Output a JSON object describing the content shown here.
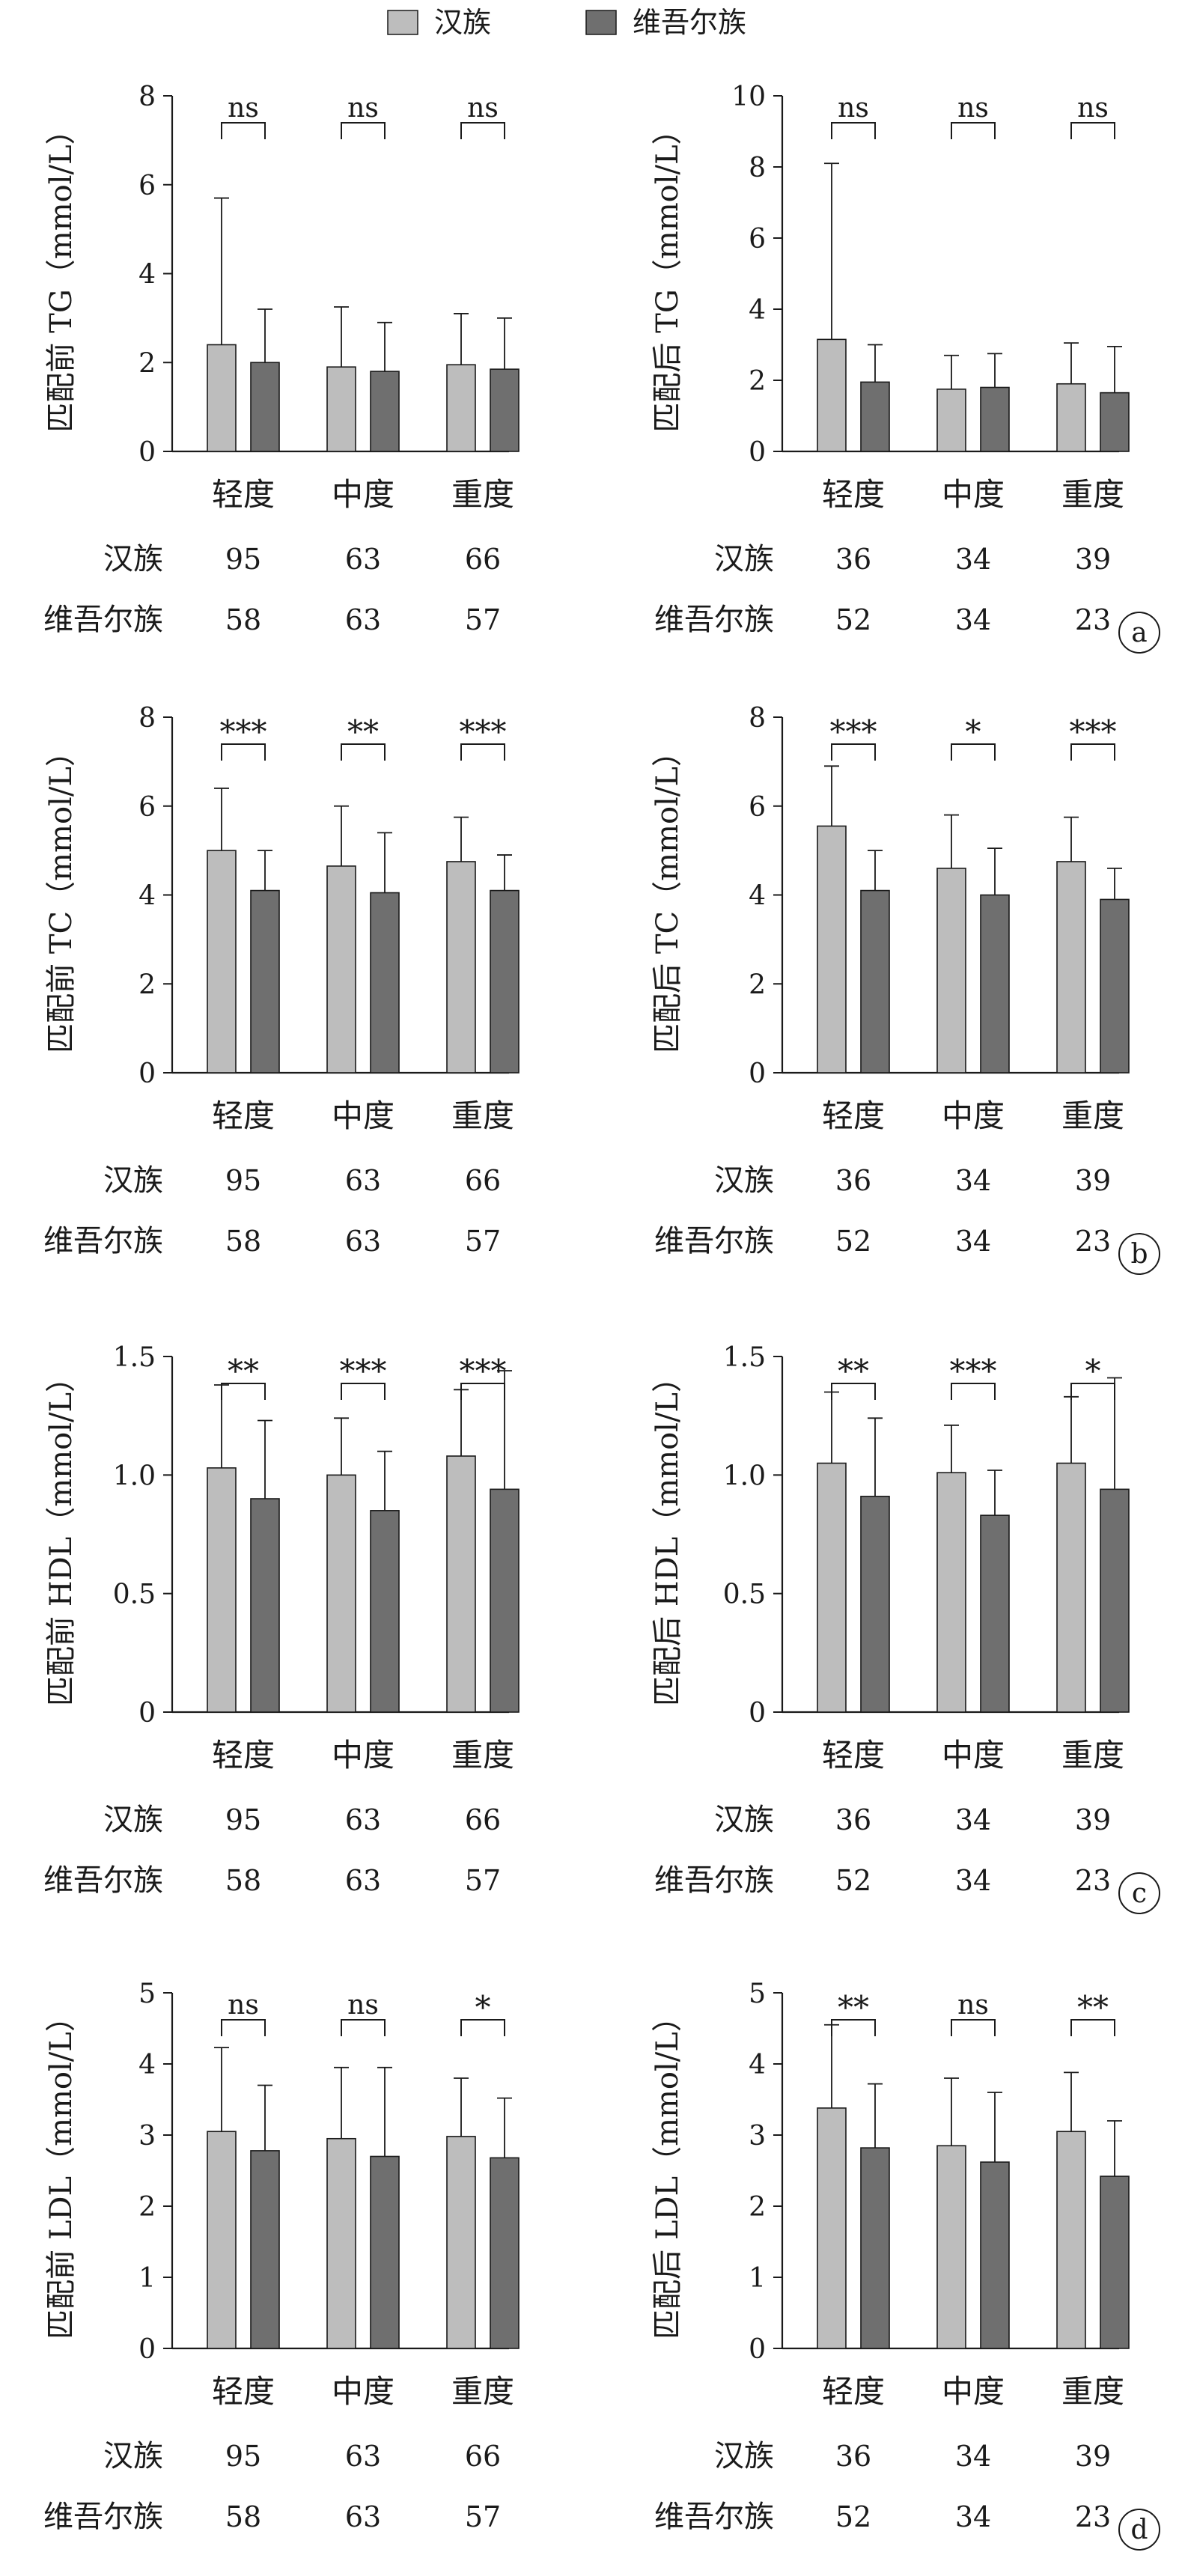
{
  "legend": {
    "items": [
      {
        "label": "汉族",
        "color": "#bdbdbd"
      },
      {
        "label": "维吾尔族",
        "color": "#6f6f6f"
      }
    ]
  },
  "colors": {
    "han": "#bdbdbd",
    "uyghur": "#6f6f6f",
    "axis": "#1a1a1a"
  },
  "count_row_labels": [
    "汉族",
    "维吾尔族"
  ],
  "panels": [
    {
      "letter": "a",
      "charts": [
        {
          "ylabel": "匹配前 TG（mmol/L）",
          "ticks": [
            "0",
            "2",
            "4",
            "6",
            "8"
          ],
          "counts_han": [
            "95",
            "63",
            "66"
          ],
          "counts_uyghur": [
            "58",
            "63",
            "57"
          ]
        },
        {
          "ylabel": "匹配后 TG（mmol/L）",
          "ticks": [
            "0",
            "2",
            "4",
            "6",
            "8",
            "10"
          ],
          "counts_han": [
            "36",
            "34",
            "39"
          ],
          "counts_uyghur": [
            "52",
            "34",
            "23"
          ]
        }
      ]
    },
    {
      "letter": "b",
      "charts": [
        {
          "ylabel": "匹配前 TC（mmol/L）",
          "ticks": [
            "0",
            "2",
            "4",
            "6",
            "8"
          ],
          "counts_han": [
            "95",
            "63",
            "66"
          ],
          "counts_uyghur": [
            "58",
            "63",
            "57"
          ]
        },
        {
          "ylabel": "匹配后 TC（mmol/L）",
          "ticks": [
            "0",
            "2",
            "4",
            "6",
            "8"
          ],
          "counts_han": [
            "36",
            "34",
            "39"
          ],
          "counts_uyghur": [
            "52",
            "34",
            "23"
          ]
        }
      ]
    },
    {
      "letter": "c",
      "charts": [
        {
          "ylabel": "匹配前 HDL（mmol/L）",
          "ticks": [
            "0",
            "0.5",
            "1.0",
            "1.5"
          ],
          "counts_han": [
            "95",
            "63",
            "66"
          ],
          "counts_uyghur": [
            "58",
            "63",
            "57"
          ]
        },
        {
          "ylabel": "匹配后 HDL（mmol/L）",
          "ticks": [
            "0",
            "0.5",
            "1.0",
            "1.5"
          ],
          "counts_han": [
            "36",
            "34",
            "39"
          ],
          "counts_uyghur": [
            "52",
            "34",
            "23"
          ]
        }
      ]
    },
    {
      "letter": "d",
      "charts": [
        {
          "ylabel": "匹配前 LDL（mmol/L）",
          "ticks": [
            "0",
            "1",
            "2",
            "3",
            "4",
            "5"
          ],
          "counts_han": [
            "95",
            "63",
            "66"
          ],
          "counts_uyghur": [
            "58",
            "63",
            "57"
          ]
        },
        {
          "ylabel": "匹配后 LDL（mmol/L）",
          "ticks": [
            "0",
            "1",
            "2",
            "3",
            "4",
            "5"
          ],
          "counts_han": [
            "36",
            "34",
            "39"
          ],
          "counts_uyghur": [
            "52",
            "34",
            "23"
          ]
        }
      ]
    }
  ],
  "chart_data": [
    {
      "type": "bar",
      "ylabel": "匹配前 TG（mmol/L）",
      "ylim": [
        0,
        8
      ],
      "categories": [
        "轻度",
        "中度",
        "重度"
      ],
      "series": [
        {
          "name": "汉族",
          "values": [
            2.4,
            1.9,
            1.95
          ],
          "error_upper": [
            5.7,
            3.25,
            3.1
          ]
        },
        {
          "name": "维吾尔族",
          "values": [
            2.0,
            1.8,
            1.85
          ],
          "error_upper": [
            3.2,
            2.9,
            3.0
          ]
        }
      ],
      "significance": [
        "ns",
        "ns",
        "ns"
      ]
    },
    {
      "type": "bar",
      "ylabel": "匹配后 TG（mmol/L）",
      "ylim": [
        0,
        10
      ],
      "categories": [
        "轻度",
        "中度",
        "重度"
      ],
      "series": [
        {
          "name": "汉族",
          "values": [
            3.15,
            1.75,
            1.9
          ],
          "error_upper": [
            8.1,
            2.7,
            3.05
          ]
        },
        {
          "name": "维吾尔族",
          "values": [
            1.95,
            1.8,
            1.65
          ],
          "error_upper": [
            3.0,
            2.75,
            2.95
          ]
        }
      ],
      "significance": [
        "ns",
        "ns",
        "ns"
      ]
    },
    {
      "type": "bar",
      "ylabel": "匹配前 TC（mmol/L）",
      "ylim": [
        0,
        8
      ],
      "categories": [
        "轻度",
        "中度",
        "重度"
      ],
      "series": [
        {
          "name": "汉族",
          "values": [
            5.0,
            4.65,
            4.75
          ],
          "error_upper": [
            6.4,
            6.0,
            5.75
          ]
        },
        {
          "name": "维吾尔族",
          "values": [
            4.1,
            4.05,
            4.1
          ],
          "error_upper": [
            5.0,
            5.4,
            4.9
          ]
        }
      ],
      "significance": [
        "***",
        "**",
        "***"
      ]
    },
    {
      "type": "bar",
      "ylabel": "匹配后 TC（mmol/L）",
      "ylim": [
        0,
        8
      ],
      "categories": [
        "轻度",
        "中度",
        "重度"
      ],
      "series": [
        {
          "name": "汉族",
          "values": [
            5.55,
            4.6,
            4.75
          ],
          "error_upper": [
            6.9,
            5.8,
            5.75
          ]
        },
        {
          "name": "维吾尔族",
          "values": [
            4.1,
            4.0,
            3.9
          ],
          "error_upper": [
            5.0,
            5.05,
            4.6
          ]
        }
      ],
      "significance": [
        "***",
        "*",
        "***"
      ]
    },
    {
      "type": "bar",
      "ylabel": "匹配前 HDL（mmol/L）",
      "ylim": [
        0,
        1.5
      ],
      "categories": [
        "轻度",
        "中度",
        "重度"
      ],
      "series": [
        {
          "name": "汉族",
          "values": [
            1.03,
            1.0,
            1.08
          ],
          "error_upper": [
            1.38,
            1.24,
            1.36
          ]
        },
        {
          "name": "维吾尔族",
          "values": [
            0.9,
            0.85,
            0.94
          ],
          "error_upper": [
            1.23,
            1.1,
            1.44
          ]
        }
      ],
      "significance": [
        "**",
        "***",
        "***"
      ]
    },
    {
      "type": "bar",
      "ylabel": "匹配后 HDL（mmol/L）",
      "ylim": [
        0,
        1.5
      ],
      "categories": [
        "轻度",
        "中度",
        "重度"
      ],
      "series": [
        {
          "name": "汉族",
          "values": [
            1.05,
            1.01,
            1.05
          ],
          "error_upper": [
            1.35,
            1.21,
            1.33
          ]
        },
        {
          "name": "维吾尔族",
          "values": [
            0.91,
            0.83,
            0.94
          ],
          "error_upper": [
            1.24,
            1.02,
            1.41
          ]
        }
      ],
      "significance": [
        "**",
        "***",
        "*"
      ]
    },
    {
      "type": "bar",
      "ylabel": "匹配前 LDL（mmol/L）",
      "ylim": [
        0,
        5
      ],
      "categories": [
        "轻度",
        "中度",
        "重度"
      ],
      "series": [
        {
          "name": "汉族",
          "values": [
            3.05,
            2.95,
            2.98
          ],
          "error_upper": [
            4.23,
            3.95,
            3.8
          ]
        },
        {
          "name": "维吾尔族",
          "values": [
            2.78,
            2.7,
            2.68
          ],
          "error_upper": [
            3.7,
            3.95,
            3.52
          ]
        }
      ],
      "significance": [
        "ns",
        "ns",
        "*"
      ]
    },
    {
      "type": "bar",
      "ylabel": "匹配后 LDL（mmol/L）",
      "ylim": [
        0,
        5
      ],
      "categories": [
        "轻度",
        "中度",
        "重度"
      ],
      "series": [
        {
          "name": "汉族",
          "values": [
            3.38,
            2.85,
            3.05
          ],
          "error_upper": [
            4.55,
            3.8,
            3.88
          ]
        },
        {
          "name": "维吾尔族",
          "values": [
            2.82,
            2.62,
            2.42
          ],
          "error_upper": [
            3.72,
            3.6,
            3.2
          ]
        }
      ],
      "significance": [
        "**",
        "ns",
        "**"
      ]
    }
  ]
}
